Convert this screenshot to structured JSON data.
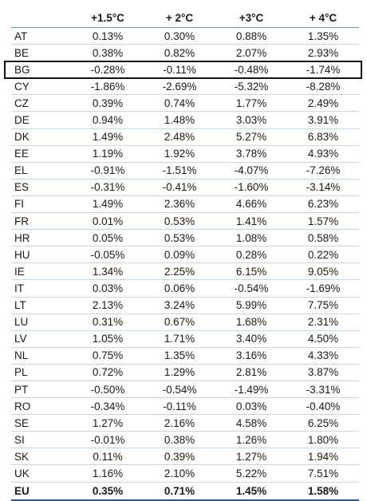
{
  "table": {
    "columns": [
      "",
      "+1.5°C",
      "+ 2°C",
      "+3°C",
      "+ 4°C"
    ],
    "rows": [
      {
        "country": "AT",
        "values": [
          "0.13%",
          "0.30%",
          "0.88%",
          "1.35%"
        ]
      },
      {
        "country": "BE",
        "values": [
          "0.38%",
          "0.82%",
          "2.07%",
          "2.93%"
        ]
      },
      {
        "country": "BG",
        "values": [
          "-0.28%",
          "-0.11%",
          "-0.48%",
          "-1.74%"
        ]
      },
      {
        "country": "CY",
        "values": [
          "-1.86%",
          "-2.69%",
          "-5.32%",
          "-8.28%"
        ]
      },
      {
        "country": "CZ",
        "values": [
          "0.39%",
          "0.74%",
          "1.77%",
          "2.49%"
        ]
      },
      {
        "country": "DE",
        "values": [
          "0.94%",
          "1.48%",
          "3.03%",
          "3.91%"
        ]
      },
      {
        "country": "DK",
        "values": [
          "1.49%",
          "2.48%",
          "5.27%",
          "6.83%"
        ]
      },
      {
        "country": "EE",
        "values": [
          "1.19%",
          "1.92%",
          "3.78%",
          "4.93%"
        ]
      },
      {
        "country": "EL",
        "values": [
          "-0.91%",
          "-1.51%",
          "-4.07%",
          "-7.26%"
        ]
      },
      {
        "country": "ES",
        "values": [
          "-0.31%",
          "-0.41%",
          "-1.60%",
          "-3.14%"
        ]
      },
      {
        "country": "FI",
        "values": [
          "1.49%",
          "2.36%",
          "4.66%",
          "6.23%"
        ]
      },
      {
        "country": "FR",
        "values": [
          "0.01%",
          "0.53%",
          "1.41%",
          "1.57%"
        ]
      },
      {
        "country": "HR",
        "values": [
          "0.05%",
          "0.53%",
          "1.08%",
          "0.58%"
        ]
      },
      {
        "country": "HU",
        "values": [
          "-0.05%",
          "0.09%",
          "0.28%",
          "0.22%"
        ]
      },
      {
        "country": "IE",
        "values": [
          "1.34%",
          "2.25%",
          "6.15%",
          "9.05%"
        ]
      },
      {
        "country": "IT",
        "values": [
          "0.03%",
          "0.06%",
          "-0.54%",
          "-1.69%"
        ]
      },
      {
        "country": "LT",
        "values": [
          "2.13%",
          "3.24%",
          "5.99%",
          "7.75%"
        ]
      },
      {
        "country": "LU",
        "values": [
          "0.31%",
          "0.67%",
          "1.68%",
          "2.31%"
        ]
      },
      {
        "country": "LV",
        "values": [
          "1.05%",
          "1.71%",
          "3.40%",
          "4.50%"
        ]
      },
      {
        "country": "NL",
        "values": [
          "0.75%",
          "1.35%",
          "3.16%",
          "4.33%"
        ]
      },
      {
        "country": "PL",
        "values": [
          "0.72%",
          "1.29%",
          "2.81%",
          "3.87%"
        ]
      },
      {
        "country": "PT",
        "values": [
          "-0.50%",
          "-0.54%",
          "-1.49%",
          "-3.31%"
        ]
      },
      {
        "country": "RO",
        "values": [
          "-0.34%",
          "-0.11%",
          "0.03%",
          "-0.40%"
        ]
      },
      {
        "country": "SE",
        "values": [
          "1.27%",
          "2.16%",
          "4.58%",
          "6.25%"
        ]
      },
      {
        "country": "SI",
        "values": [
          "-0.01%",
          "0.38%",
          "1.26%",
          "1.80%"
        ]
      },
      {
        "country": "SK",
        "values": [
          "0.11%",
          "0.39%",
          "1.27%",
          "1.94%"
        ]
      },
      {
        "country": "UK",
        "values": [
          "1.16%",
          "2.10%",
          "5.22%",
          "7.51%"
        ]
      }
    ],
    "total": {
      "country": "EU",
      "values": [
        "0.35%",
        "0.71%",
        "1.45%",
        "1.58%"
      ]
    },
    "highlighted_row": "BG"
  },
  "colors": {
    "header_rule": "#5b9bd5",
    "row_rule": "#bdd7ee",
    "highlight_border": "#111111"
  }
}
